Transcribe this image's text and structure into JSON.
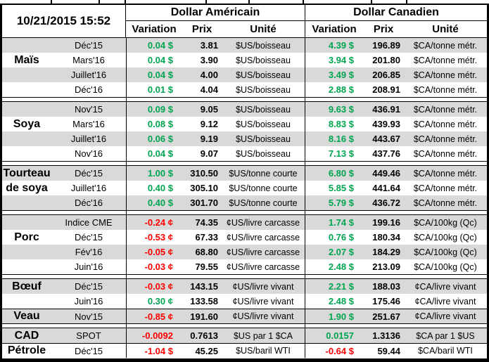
{
  "meta": {
    "timestamp": "10/21/2015 15:52"
  },
  "header": {
    "us_title": "Dollar Américain",
    "ca_title": "Dollar Canadien",
    "col_variation": "Variation",
    "col_prix": "Prix",
    "col_unite": "Unité"
  },
  "colors": {
    "up": "#00A550",
    "down": "#FF0000",
    "row_shade": "#D9D9D9"
  },
  "blocks": [
    {
      "groups": [
        {
          "label_lines": [
            "Maïs"
          ],
          "label_rows": [
            1
          ],
          "rows": [
            {
              "month": "Déc'15",
              "us_variation": "0.04 $",
              "us_dir": "up",
              "us_prix": "3.81",
              "us_unite": "$US/boisseau",
              "ca_variation": "4.39 $",
              "ca_dir": "up",
              "ca_prix": "196.89",
              "ca_unite": "$CA/tonne métr."
            },
            {
              "month": "Mars'16",
              "us_variation": "0.04 $",
              "us_dir": "up",
              "us_prix": "3.90",
              "us_unite": "$US/boisseau",
              "ca_variation": "3.94 $",
              "ca_dir": "up",
              "ca_prix": "201.80",
              "ca_unite": "$CA/tonne métr."
            },
            {
              "month": "Juillet'16",
              "us_variation": "0.04 $",
              "us_dir": "up",
              "us_prix": "4.00",
              "us_unite": "$US/boisseau",
              "ca_variation": "3.49 $",
              "ca_dir": "up",
              "ca_prix": "206.85",
              "ca_unite": "$CA/tonne métr."
            },
            {
              "month": "Déc'16",
              "us_variation": "0.01 $",
              "us_dir": "up",
              "us_prix": "4.04",
              "us_unite": "$US/boisseau",
              "ca_variation": "2.88 $",
              "ca_dir": "up",
              "ca_prix": "208.91",
              "ca_unite": "$CA/tonne métr."
            }
          ]
        }
      ]
    },
    {
      "groups": [
        {
          "label_lines": [
            "Soya"
          ],
          "label_rows": [
            1
          ],
          "rows": [
            {
              "month": "Nov'15",
              "us_variation": "0.09 $",
              "us_dir": "up",
              "us_prix": "9.05",
              "us_unite": "$US/boisseau",
              "ca_variation": "9.63 $",
              "ca_dir": "up",
              "ca_prix": "436.91",
              "ca_unite": "$CA/tonne métr."
            },
            {
              "month": "Mars'16",
              "us_variation": "0.08 $",
              "us_dir": "up",
              "us_prix": "9.12",
              "us_unite": "$US/boisseau",
              "ca_variation": "8.83 $",
              "ca_dir": "up",
              "ca_prix": "439.93",
              "ca_unite": "$CA/tonne métr."
            },
            {
              "month": "Juillet'16",
              "us_variation": "0.06 $",
              "us_dir": "up",
              "us_prix": "9.19",
              "us_unite": "$US/boisseau",
              "ca_variation": "8.16 $",
              "ca_dir": "up",
              "ca_prix": "443.67",
              "ca_unite": "$CA/tonne métr."
            },
            {
              "month": "Nov'16",
              "us_variation": "0.04 $",
              "us_dir": "up",
              "us_prix": "9.07",
              "us_unite": "$US/boisseau",
              "ca_variation": "7.13 $",
              "ca_dir": "up",
              "ca_prix": "437.76",
              "ca_unite": "$CA/tonne métr."
            }
          ]
        }
      ]
    },
    {
      "groups": [
        {
          "label_lines": [
            "Tourteau",
            "de soya"
          ],
          "label_rows": [
            0,
            1
          ],
          "rows": [
            {
              "month": "Déc'15",
              "us_variation": "1.00 $",
              "us_dir": "up",
              "us_prix": "310.50",
              "us_unite": "$US/tonne courte",
              "ca_variation": "6.80 $",
              "ca_dir": "up",
              "ca_prix": "449.46",
              "ca_unite": "$CA/tonne métr."
            },
            {
              "month": "Juillet'16",
              "us_variation": "0.40 $",
              "us_dir": "up",
              "us_prix": "305.10",
              "us_unite": "$US/tonne courte",
              "ca_variation": "5.85 $",
              "ca_dir": "up",
              "ca_prix": "441.64",
              "ca_unite": "$CA/tonne métr."
            },
            {
              "month": "Déc'16",
              "us_variation": "0.40 $",
              "us_dir": "up",
              "us_prix": "301.70",
              "us_unite": "$US/tonne courte",
              "ca_variation": "5.79 $",
              "ca_dir": "up",
              "ca_prix": "436.72",
              "ca_unite": "$CA/tonne métr."
            }
          ]
        }
      ]
    },
    {
      "groups": [
        {
          "label_lines": [
            "Porc"
          ],
          "label_rows": [
            1
          ],
          "rows": [
            {
              "month": "Indice CME",
              "us_variation": "-0.24 ¢",
              "us_dir": "down",
              "us_prix": "74.35",
              "us_unite": "¢US/livre carcasse",
              "ca_variation": "1.74 $",
              "ca_dir": "up",
              "ca_prix": "199.16",
              "ca_unite": "$CA/100kg (Qc)"
            },
            {
              "month": "Déc'15",
              "us_variation": "-0.53 ¢",
              "us_dir": "down",
              "us_prix": "67.33",
              "us_unite": "¢US/livre carcasse",
              "ca_variation": "0.76 $",
              "ca_dir": "up",
              "ca_prix": "180.34",
              "ca_unite": "$CA/100kg (Qc)"
            },
            {
              "month": "Fév'16",
              "us_variation": "-0.05 ¢",
              "us_dir": "down",
              "us_prix": "68.80",
              "us_unite": "¢US/livre carcasse",
              "ca_variation": "2.07 $",
              "ca_dir": "up",
              "ca_prix": "184.29",
              "ca_unite": "$CA/100kg (Qc)"
            },
            {
              "month": "Juin'16",
              "us_variation": "-0.03 ¢",
              "us_dir": "down",
              "us_prix": "79.55",
              "us_unite": "¢US/livre carcasse",
              "ca_variation": "2.48 $",
              "ca_dir": "up",
              "ca_prix": "213.09",
              "ca_unite": "$CA/100kg (Qc)"
            }
          ]
        }
      ]
    },
    {
      "groups": [
        {
          "label_lines": [
            "Bœuf"
          ],
          "label_rows": [
            0
          ],
          "rows": [
            {
              "month": "Déc'15",
              "us_variation": "-0.03 ¢",
              "us_dir": "down",
              "us_prix": "143.15",
              "us_unite": "¢US/livre vivant",
              "ca_variation": "2.21 $",
              "ca_dir": "up",
              "ca_prix": "188.03",
              "ca_unite": "¢CA/livre vivant"
            },
            {
              "month": "Juin'16",
              "us_variation": "0.30 ¢",
              "us_dir": "up",
              "us_prix": "133.58",
              "us_unite": "¢US/livre vivant",
              "ca_variation": "2.48 $",
              "ca_dir": "up",
              "ca_prix": "175.46",
              "ca_unite": "¢CA/livre vivant"
            }
          ]
        },
        {
          "label_lines": [
            "Veau"
          ],
          "label_rows": [
            0
          ],
          "rows": [
            {
              "month": "Nov'15",
              "us_variation": "-0.85 ¢",
              "us_dir": "down",
              "us_prix": "191.60",
              "us_unite": "¢US/livre vivant",
              "ca_variation": "1.90 $",
              "ca_dir": "up",
              "ca_prix": "251.67",
              "ca_unite": "¢CA/livre vivant"
            }
          ]
        }
      ]
    },
    {
      "groups": [
        {
          "label_lines": [
            "CAD"
          ],
          "label_rows": [
            0
          ],
          "rows": [
            {
              "month": "SPOT",
              "us_variation": "-0.0092",
              "us_dir": "down",
              "us_prix": "0.7613",
              "us_unite": "$US par 1 $CA",
              "ca_variation": "0.0157",
              "ca_dir": "up",
              "ca_prix": "1.3136",
              "ca_unite": "$CA par 1 $US"
            }
          ]
        },
        {
          "label_lines": [
            "Pétrole"
          ],
          "label_rows": [
            0
          ],
          "rows": [
            {
              "month": "Déc'15",
              "us_variation": "-1.04 $",
              "us_dir": "down",
              "us_prix": "45.25",
              "us_unite": "$US/baril WTI",
              "ca_variation": "-0.64 $",
              "ca_dir": "down",
              "ca_prix": "59.44",
              "ca_unite": "$CA/baril WTI"
            }
          ]
        }
      ]
    }
  ]
}
